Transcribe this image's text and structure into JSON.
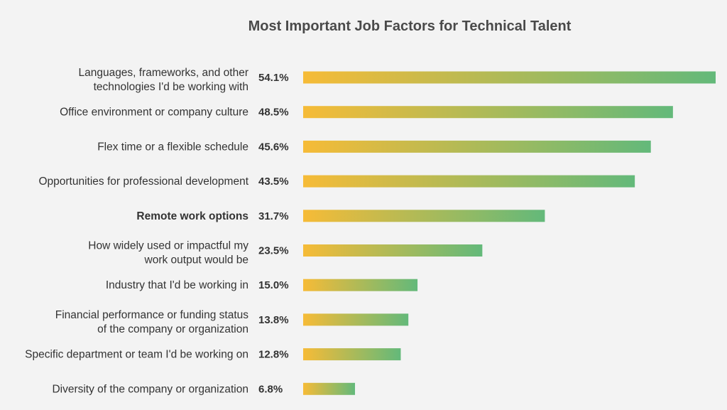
{
  "chart_data": {
    "type": "bar",
    "orientation": "horizontal",
    "title": "Most Important Job Factors for Technical Talent",
    "xlabel": "",
    "ylabel": "",
    "xlim": [
      0,
      54.1
    ],
    "grid": false,
    "legend": "none",
    "categories": [
      [
        "Languages, frameworks, and other",
        "technologies I'd be working with"
      ],
      [
        "Office environment or company culture"
      ],
      [
        "Flex time or a flexible schedule"
      ],
      [
        "Opportunities for professional development"
      ],
      [
        "Remote work options"
      ],
      [
        "How widely used or impactful my",
        "work output would be"
      ],
      [
        "Industry that I'd be working in"
      ],
      [
        "Financial performance or funding status",
        "of the company or organization"
      ],
      [
        "Specific department or team I'd be working on"
      ],
      [
        "Diversity of the company or organization"
      ]
    ],
    "values": [
      54.1,
      48.5,
      45.6,
      43.5,
      31.7,
      23.5,
      15.0,
      13.8,
      12.8,
      6.8
    ],
    "value_labels": [
      "54.1%",
      "48.5%",
      "45.6%",
      "43.5%",
      "31.7%",
      "23.5%",
      "15.0%",
      "13.8%",
      "12.8%",
      "6.8%"
    ],
    "highlighted_category_index": 4,
    "colors": {
      "gradient_start": "#f6bb37",
      "gradient_end": "#63b97a",
      "text": "#333333",
      "title": "#4a4a4a",
      "background": "#f3f3f3"
    }
  }
}
